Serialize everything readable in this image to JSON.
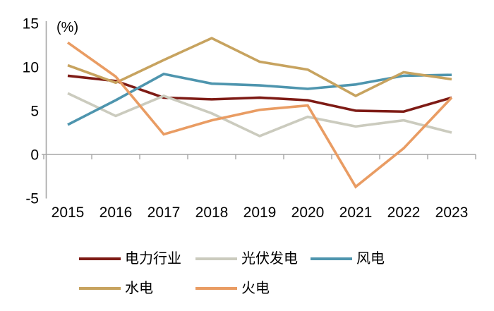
{
  "chart_data": {
    "type": "line",
    "title": "",
    "unit_label": "(%)",
    "xlabel": "",
    "ylabel": "",
    "categories": [
      "2015",
      "2016",
      "2017",
      "2018",
      "2019",
      "2020",
      "2021",
      "2022",
      "2023"
    ],
    "y_ticks": [
      "15",
      "10",
      "5",
      "0",
      "-5"
    ],
    "y_tick_values": [
      15,
      10,
      5,
      0,
      -5
    ],
    "ylim": [
      -5,
      15
    ],
    "grid": false,
    "legend_position": "bottom",
    "axis_color": "#a6a6a6",
    "text_color": "#000000",
    "series": [
      {
        "name": "电力行业",
        "color": "#7e1b15",
        "values": [
          9.0,
          8.4,
          6.5,
          6.3,
          6.5,
          6.2,
          5.0,
          4.9,
          6.5
        ]
      },
      {
        "name": "光伏发电",
        "color": "#cbcbbe",
        "values": [
          7.0,
          4.4,
          6.7,
          4.7,
          2.1,
          4.3,
          3.2,
          3.9,
          2.5
        ]
      },
      {
        "name": "风电",
        "color": "#4e95ae",
        "values": [
          3.4,
          6.2,
          9.2,
          8.1,
          7.9,
          7.5,
          8.0,
          9.0,
          9.1
        ]
      },
      {
        "name": "水电",
        "color": "#c7a35f",
        "values": [
          10.2,
          8.2,
          10.8,
          13.3,
          10.6,
          9.7,
          6.7,
          9.4,
          8.6
        ]
      },
      {
        "name": "火电",
        "color": "#e99c63",
        "values": [
          12.8,
          8.9,
          2.3,
          3.9,
          5.1,
          5.6,
          -3.7,
          0.7,
          6.5
        ]
      }
    ]
  }
}
